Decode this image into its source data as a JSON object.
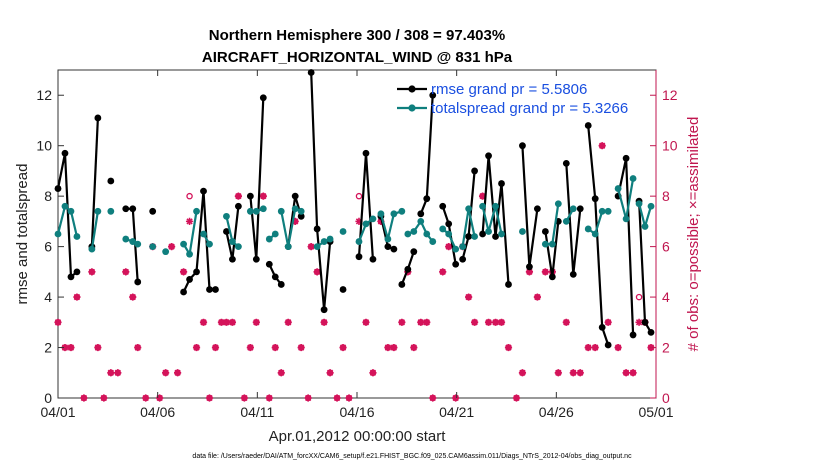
{
  "chart_data": {
    "type": "line",
    "title": "Northern Hemisphere 300 / 308 = 97.403%",
    "subtitle": "AIRCRAFT_HORIZONTAL_WIND @ 831 hPa",
    "xlabel": "Apr.01,2012 00:00:00 start",
    "ylabel": "rmse and totalspread",
    "y2label": "# of obs: o=possible; ×=assimilated",
    "footnote": "data file: /Users/raeder/DAI/ATM_forcXX/CAM6_setup/f.e21.FHIST_BGC.f09_025.CAM6assim.011/Diags_NTrS_2012-04/obs_diag_output.nc",
    "xlim": [
      0,
      30
    ],
    "ylim": [
      0,
      13
    ],
    "y2lim": [
      0,
      13
    ],
    "xticks": [
      0,
      5,
      10,
      15,
      20,
      25,
      30
    ],
    "xtick_labels": [
      "04/01",
      "04/06",
      "04/11",
      "04/16",
      "04/21",
      "04/26",
      "05/01"
    ],
    "yticks": [
      0,
      2,
      4,
      6,
      8,
      10,
      12
    ],
    "y2ticks": [
      0,
      2,
      4,
      6,
      8,
      10,
      12
    ],
    "legend_position": "top-right",
    "series": [
      {
        "name": "rmse grand pr = 5.5806",
        "color": "#000000",
        "segments": [
          [
            [
              0.0,
              8.3
            ],
            [
              0.35,
              9.7
            ],
            [
              0.65,
              4.8
            ],
            [
              0.95,
              5.0
            ]
          ],
          [
            [
              1.7,
              6.0
            ],
            [
              2.0,
              11.1
            ]
          ],
          [
            [
              2.65,
              8.6
            ]
          ],
          [
            [
              3.4,
              7.5
            ],
            [
              3.75,
              7.5
            ],
            [
              4.0,
              4.6
            ]
          ],
          [
            [
              4.75,
              7.4
            ]
          ],
          [
            [
              6.3,
              4.2
            ],
            [
              6.6,
              4.7
            ],
            [
              6.95,
              5.0
            ],
            [
              7.3,
              8.2
            ],
            [
              7.6,
              4.3
            ],
            [
              7.9,
              4.3
            ]
          ],
          [
            [
              8.45,
              6.6
            ],
            [
              8.75,
              5.5
            ],
            [
              9.05,
              7.6
            ]
          ],
          [
            [
              9.65,
              8.0
            ],
            [
              9.95,
              5.5
            ],
            [
              10.3,
              11.9
            ]
          ],
          [
            [
              10.6,
              5.3
            ],
            [
              10.9,
              4.8
            ],
            [
              11.2,
              4.5
            ]
          ],
          [
            [
              11.55,
              6.0
            ],
            [
              11.9,
              8.0
            ],
            [
              12.2,
              7.2
            ]
          ],
          [
            [
              12.7,
              12.9
            ],
            [
              13.0,
              6.7
            ],
            [
              13.35,
              3.5
            ],
            [
              13.65,
              6.2
            ]
          ],
          [
            [
              14.3,
              4.3
            ]
          ],
          [
            [
              15.1,
              5.6
            ],
            [
              15.45,
              9.7
            ],
            [
              15.8,
              5.5
            ]
          ],
          [
            [
              16.2,
              7.2
            ],
            [
              16.55,
              6.0
            ],
            [
              16.85,
              5.9
            ]
          ],
          [
            [
              17.25,
              4.5
            ],
            [
              17.55,
              5.1
            ],
            [
              17.85,
              5.8
            ]
          ],
          [
            [
              18.2,
              7.3
            ],
            [
              18.5,
              7.9
            ],
            [
              18.8,
              12.0
            ]
          ],
          [
            [
              19.3,
              7.6
            ],
            [
              19.6,
              6.9
            ],
            [
              19.95,
              5.3
            ]
          ],
          [
            [
              20.3,
              5.5
            ],
            [
              20.6,
              6.4
            ],
            [
              20.9,
              9.0
            ]
          ],
          [
            [
              21.3,
              6.5
            ],
            [
              21.6,
              9.6
            ],
            [
              21.95,
              6.4
            ],
            [
              22.25,
              8.5
            ],
            [
              22.6,
              4.5
            ]
          ],
          [
            [
              23.3,
              10.0
            ],
            [
              23.65,
              5.2
            ],
            [
              24.05,
              7.5
            ]
          ],
          [
            [
              24.45,
              6.6
            ],
            [
              24.8,
              4.8
            ],
            [
              25.1,
              7.0
            ]
          ],
          [
            [
              25.5,
              9.3
            ],
            [
              25.85,
              4.9
            ],
            [
              26.2,
              7.5
            ]
          ],
          [
            [
              26.6,
              10.8
            ],
            [
              26.95,
              7.9
            ],
            [
              27.3,
              2.8
            ],
            [
              27.6,
              2.1
            ]
          ],
          [
            [
              28.1,
              8.0
            ],
            [
              28.5,
              9.5
            ],
            [
              28.85,
              2.5
            ]
          ],
          [
            [
              29.15,
              7.8
            ],
            [
              29.45,
              3.0
            ],
            [
              29.75,
              2.6
            ]
          ]
        ]
      },
      {
        "name": "totalspread grand pr = 5.3266",
        "color": "#0f7f7e",
        "segments": [
          [
            [
              0.0,
              6.5
            ],
            [
              0.35,
              7.6
            ],
            [
              0.65,
              7.4
            ],
            [
              0.95,
              6.4
            ]
          ],
          [
            [
              1.7,
              5.9
            ],
            [
              2.0,
              7.4
            ]
          ],
          [
            [
              2.65,
              7.4
            ]
          ],
          [
            [
              3.4,
              6.3
            ],
            [
              3.75,
              6.2
            ],
            [
              4.0,
              6.1
            ]
          ],
          [
            [
              4.75,
              6.0
            ]
          ],
          [
            [
              5.4,
              5.8
            ]
          ],
          [
            [
              6.3,
              6.1
            ],
            [
              6.6,
              5.7
            ],
            [
              6.95,
              7.4
            ]
          ],
          [
            [
              7.3,
              6.5
            ],
            [
              7.6,
              6.1
            ]
          ],
          [
            [
              8.45,
              7.2
            ],
            [
              8.75,
              6.2
            ],
            [
              9.05,
              6.0
            ]
          ],
          [
            [
              9.65,
              7.4
            ],
            [
              9.95,
              7.4
            ],
            [
              10.3,
              7.5
            ]
          ],
          [
            [
              10.6,
              6.3
            ],
            [
              10.9,
              6.5
            ]
          ],
          [
            [
              11.2,
              7.4
            ],
            [
              11.55,
              6.0
            ],
            [
              11.9,
              7.5
            ],
            [
              12.2,
              7.4
            ]
          ],
          [
            [
              13.0,
              6.0
            ],
            [
              13.35,
              6.2
            ],
            [
              13.65,
              6.3
            ]
          ],
          [
            [
              14.3,
              6.6
            ]
          ],
          [
            [
              15.1,
              6.2
            ],
            [
              15.45,
              6.9
            ],
            [
              15.8,
              7.1
            ]
          ],
          [
            [
              16.2,
              7.3
            ],
            [
              16.55,
              6.3
            ],
            [
              16.85,
              7.3
            ],
            [
              17.25,
              7.4
            ]
          ],
          [
            [
              17.55,
              6.5
            ],
            [
              17.85,
              6.6
            ],
            [
              18.2,
              7.0
            ],
            [
              18.5,
              6.5
            ],
            [
              18.8,
              6.2
            ]
          ],
          [
            [
              19.3,
              6.7
            ],
            [
              19.6,
              6.5
            ],
            [
              19.95,
              5.9
            ]
          ],
          [
            [
              20.3,
              6.0
            ],
            [
              20.6,
              7.5
            ],
            [
              20.9,
              6.4
            ]
          ],
          [
            [
              21.3,
              7.6
            ],
            [
              21.6,
              6.6
            ],
            [
              21.95,
              7.6
            ],
            [
              22.25,
              6.5
            ]
          ],
          [
            [
              23.3,
              6.6
            ]
          ],
          [
            [
              24.45,
              6.1
            ],
            [
              24.8,
              6.1
            ],
            [
              25.1,
              7.7
            ]
          ],
          [
            [
              25.5,
              7.0
            ],
            [
              25.85,
              7.5
            ]
          ],
          [
            [
              26.6,
              6.7
            ],
            [
              26.95,
              6.5
            ],
            [
              27.3,
              7.4
            ],
            [
              27.6,
              7.4
            ]
          ],
          [
            [
              28.1,
              8.3
            ],
            [
              28.5,
              7.1
            ],
            [
              28.85,
              8.7
            ]
          ],
          [
            [
              29.15,
              7.7
            ],
            [
              29.45,
              6.8
            ],
            [
              29.75,
              7.6
            ]
          ]
        ]
      }
    ],
    "obs_possible": [
      [
        0.0,
        3
      ],
      [
        0.35,
        2
      ],
      [
        0.65,
        2
      ],
      [
        0.95,
        4
      ],
      [
        1.3,
        0
      ],
      [
        1.7,
        5
      ],
      [
        2.0,
        2
      ],
      [
        2.3,
        0
      ],
      [
        2.65,
        1
      ],
      [
        3.0,
        1
      ],
      [
        3.4,
        5
      ],
      [
        3.75,
        4
      ],
      [
        4.0,
        2
      ],
      [
        4.4,
        0
      ],
      [
        4.75,
        6
      ],
      [
        5.1,
        0
      ],
      [
        5.4,
        1
      ],
      [
        5.7,
        6
      ],
      [
        6.0,
        1
      ],
      [
        6.3,
        5
      ],
      [
        6.6,
        8
      ],
      [
        6.95,
        2
      ],
      [
        7.3,
        3
      ],
      [
        7.6,
        0
      ],
      [
        7.9,
        2
      ],
      [
        8.2,
        3
      ],
      [
        8.45,
        3
      ],
      [
        8.75,
        3
      ],
      [
        9.05,
        8
      ],
      [
        9.35,
        0
      ],
      [
        9.65,
        2
      ],
      [
        9.95,
        3
      ],
      [
        10.3,
        8
      ],
      [
        10.6,
        0
      ],
      [
        10.9,
        2
      ],
      [
        11.2,
        1
      ],
      [
        11.55,
        3
      ],
      [
        11.9,
        7
      ],
      [
        12.2,
        2
      ],
      [
        12.55,
        0
      ],
      [
        12.7,
        6
      ],
      [
        13.0,
        5
      ],
      [
        13.35,
        3
      ],
      [
        13.65,
        1
      ],
      [
        14.0,
        0
      ],
      [
        14.3,
        2
      ],
      [
        14.6,
        0
      ],
      [
        15.1,
        8
      ],
      [
        15.45,
        3
      ],
      [
        15.8,
        1
      ],
      [
        16.2,
        7
      ],
      [
        16.55,
        2
      ],
      [
        16.85,
        2
      ],
      [
        17.25,
        3
      ],
      [
        17.55,
        5
      ],
      [
        17.85,
        2
      ],
      [
        18.2,
        3
      ],
      [
        18.5,
        3
      ],
      [
        18.8,
        0
      ],
      [
        19.3,
        5
      ],
      [
        19.6,
        6
      ],
      [
        19.95,
        0
      ],
      [
        20.3,
        6
      ],
      [
        20.6,
        4
      ],
      [
        20.9,
        3
      ],
      [
        21.3,
        8
      ],
      [
        21.6,
        3
      ],
      [
        21.95,
        3
      ],
      [
        22.25,
        3
      ],
      [
        22.6,
        2
      ],
      [
        23.0,
        0
      ],
      [
        23.3,
        1
      ],
      [
        23.65,
        5
      ],
      [
        24.05,
        4
      ],
      [
        24.45,
        5
      ],
      [
        24.8,
        5
      ],
      [
        25.1,
        1
      ],
      [
        25.5,
        3
      ],
      [
        25.85,
        1
      ],
      [
        26.2,
        1
      ],
      [
        26.6,
        2
      ],
      [
        26.95,
        2
      ],
      [
        27.3,
        10
      ],
      [
        27.6,
        3
      ],
      [
        28.1,
        2
      ],
      [
        28.5,
        1
      ],
      [
        28.85,
        1
      ],
      [
        29.15,
        4
      ],
      [
        29.45,
        3
      ],
      [
        29.75,
        2
      ]
    ],
    "obs_assimilated": [
      [
        0.0,
        3
      ],
      [
        0.35,
        2
      ],
      [
        0.65,
        2
      ],
      [
        0.95,
        4
      ],
      [
        1.3,
        0
      ],
      [
        1.7,
        5
      ],
      [
        2.0,
        2
      ],
      [
        2.3,
        0
      ],
      [
        2.65,
        1
      ],
      [
        3.0,
        1
      ],
      [
        3.4,
        5
      ],
      [
        3.75,
        4
      ],
      [
        4.0,
        2
      ],
      [
        4.4,
        0
      ],
      [
        4.75,
        6
      ],
      [
        5.1,
        0
      ],
      [
        5.4,
        1
      ],
      [
        5.7,
        6
      ],
      [
        6.0,
        1
      ],
      [
        6.3,
        5
      ],
      [
        6.6,
        7
      ],
      [
        6.95,
        2
      ],
      [
        7.3,
        3
      ],
      [
        7.6,
        0
      ],
      [
        7.9,
        2
      ],
      [
        8.2,
        3
      ],
      [
        8.45,
        3
      ],
      [
        8.75,
        3
      ],
      [
        9.05,
        8
      ],
      [
        9.35,
        0
      ],
      [
        9.65,
        2
      ],
      [
        9.95,
        3
      ],
      [
        10.3,
        8
      ],
      [
        10.6,
        0
      ],
      [
        10.9,
        2
      ],
      [
        11.2,
        1
      ],
      [
        11.55,
        3
      ],
      [
        11.9,
        7
      ],
      [
        12.2,
        2
      ],
      [
        12.55,
        0
      ],
      [
        12.7,
        6
      ],
      [
        13.0,
        5
      ],
      [
        13.35,
        3
      ],
      [
        13.65,
        1
      ],
      [
        14.0,
        0
      ],
      [
        14.3,
        2
      ],
      [
        14.6,
        0
      ],
      [
        15.1,
        7
      ],
      [
        15.45,
        3
      ],
      [
        15.8,
        1
      ],
      [
        16.2,
        7
      ],
      [
        16.55,
        2
      ],
      [
        16.85,
        2
      ],
      [
        17.25,
        3
      ],
      [
        17.55,
        5
      ],
      [
        17.85,
        2
      ],
      [
        18.2,
        3
      ],
      [
        18.5,
        3
      ],
      [
        18.8,
        0
      ],
      [
        19.3,
        5
      ],
      [
        19.6,
        6
      ],
      [
        19.95,
        0
      ],
      [
        20.3,
        6
      ],
      [
        20.6,
        4
      ],
      [
        20.9,
        3
      ],
      [
        21.3,
        8
      ],
      [
        21.6,
        3
      ],
      [
        21.95,
        3
      ],
      [
        22.25,
        3
      ],
      [
        22.6,
        2
      ],
      [
        23.0,
        0
      ],
      [
        23.3,
        1
      ],
      [
        23.65,
        5
      ],
      [
        24.05,
        4
      ],
      [
        24.45,
        5
      ],
      [
        24.8,
        5
      ],
      [
        25.1,
        1
      ],
      [
        25.5,
        3
      ],
      [
        25.85,
        1
      ],
      [
        26.2,
        1
      ],
      [
        26.6,
        2
      ],
      [
        26.95,
        2
      ],
      [
        27.3,
        10
      ],
      [
        27.6,
        3
      ],
      [
        28.1,
        2
      ],
      [
        28.5,
        1
      ],
      [
        28.85,
        1
      ],
      [
        29.15,
        3
      ],
      [
        29.45,
        3
      ],
      [
        29.75,
        2
      ]
    ],
    "colors": {
      "rmse": "#000000",
      "spread": "#0f7f7e",
      "obs": "#d4135a",
      "legend_text": "#1a4fe0",
      "right_axis": "#c0164f"
    }
  }
}
